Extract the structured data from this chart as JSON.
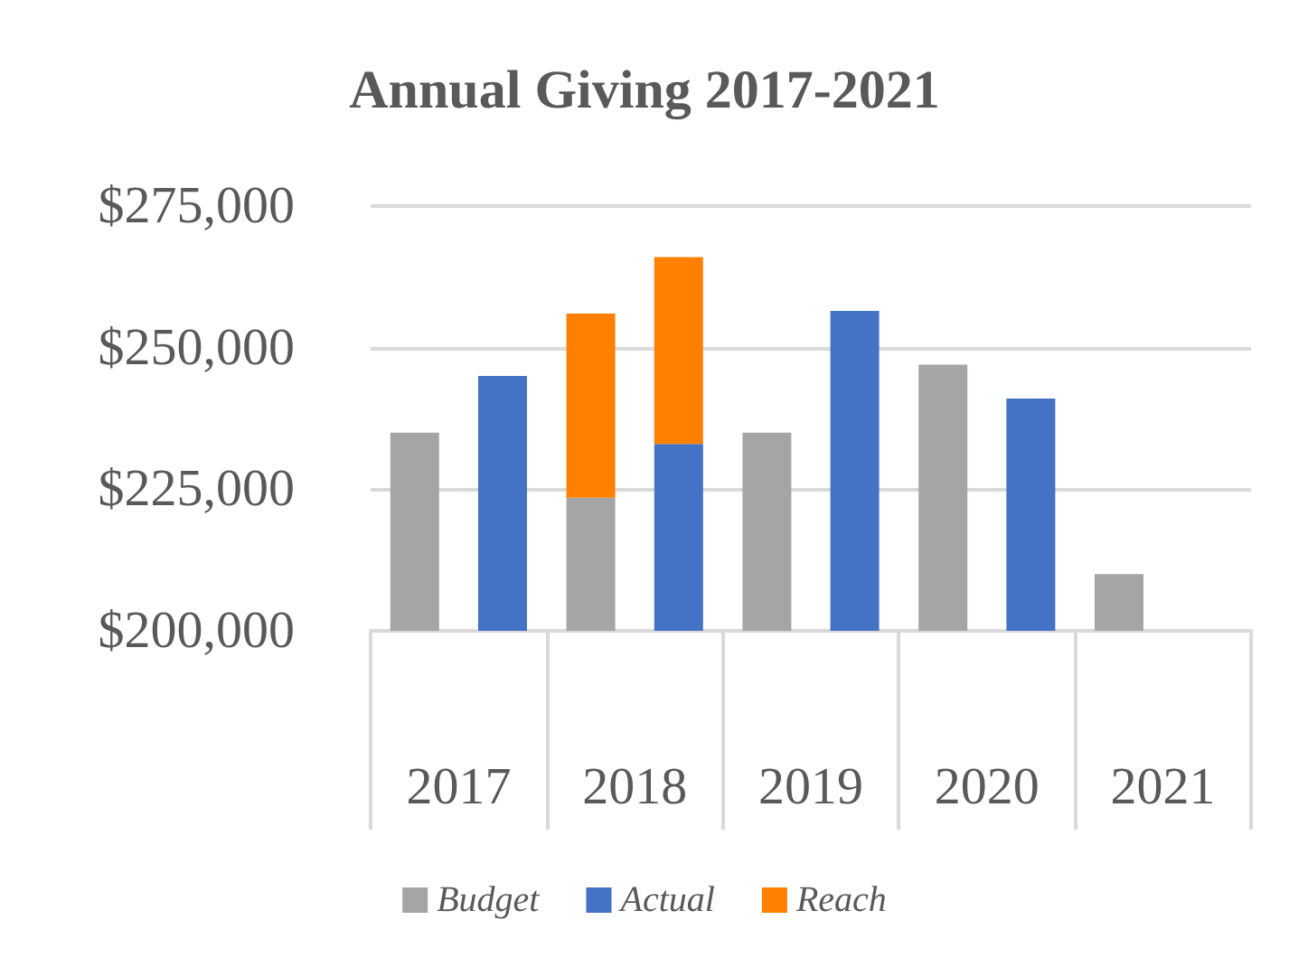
{
  "chart_data": {
    "type": "bar",
    "title": "Annual Giving 2017-2021",
    "categories": [
      "2017",
      "2018",
      "2019",
      "2020",
      "2021"
    ],
    "series": [
      {
        "name": "Budget",
        "color": "#a5a5a5",
        "values": [
          235000,
          223500,
          235000,
          247000,
          210000
        ]
      },
      {
        "name": "Reach",
        "color": "#ff7f00",
        "values": [
          null,
          32500,
          null,
          null,
          null
        ],
        "base": [
          null,
          223500,
          null,
          null,
          null
        ]
      },
      {
        "name": "Actual",
        "color": "#4472c4",
        "values": [
          245000,
          233000,
          256500,
          241000,
          null
        ]
      },
      {
        "color": "#ff7f00",
        "values": [
          null,
          33000,
          null,
          null,
          null
        ],
        "base": [
          null,
          233000,
          null,
          null,
          null
        ]
      }
    ],
    "ylim": [
      200000,
      275000
    ],
    "yticks": [
      {
        "value": 200000,
        "label": "$200,000"
      },
      {
        "value": 225000,
        "label": "$225,000"
      },
      {
        "value": 250000,
        "label": "$250,000"
      },
      {
        "value": 275000,
        "label": "$275,000"
      }
    ],
    "grid": "y",
    "legend": "bottom"
  }
}
